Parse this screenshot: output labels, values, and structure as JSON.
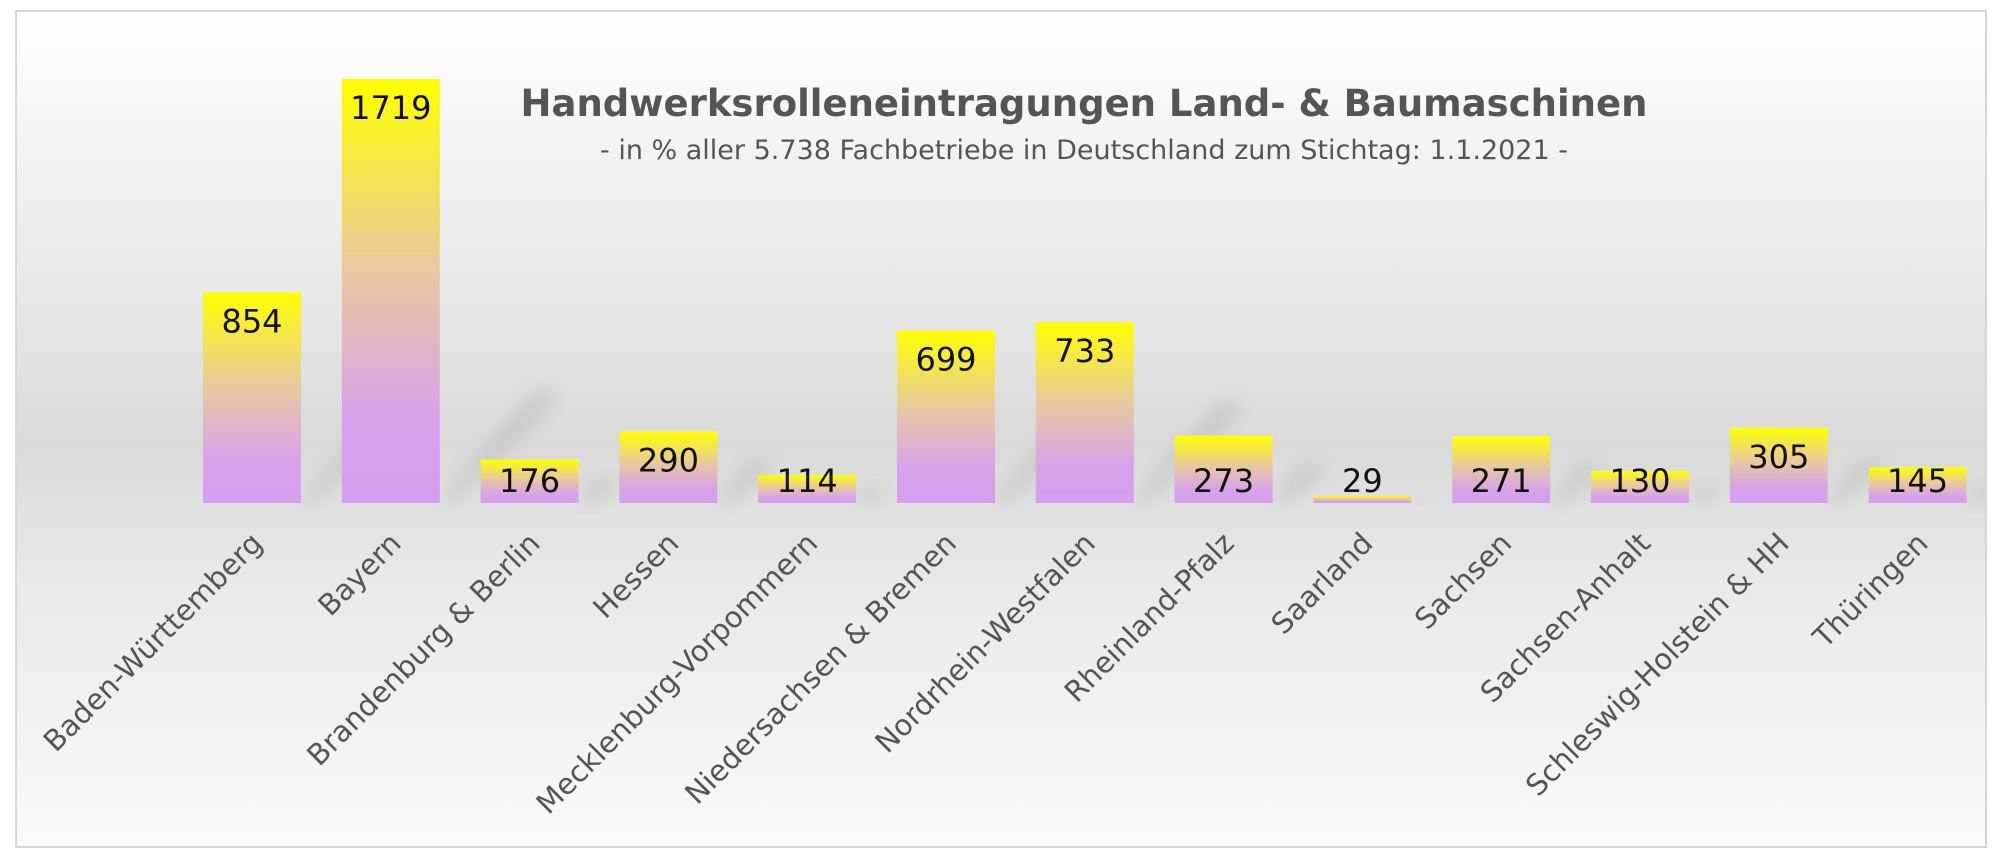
{
  "chart_data": {
    "type": "bar",
    "title": "Handwerksrolleneintragungen Land- & Baumaschinen",
    "subtitle": "- in % aller 5.738 Fachbetriebe in Deutschland zum Stichtag: 1.1.2021 -",
    "categories": [
      "Baden-Württemberg",
      "Bayern",
      "Brandenburg & Berlin",
      "Hessen",
      "Mecklenburg-Vorpommern",
      "Niedersachsen & Bremen",
      "Nordrhein-Westfalen",
      "Rheinland-Pfalz",
      "Saarland",
      "Sachsen",
      "Sachsen-Anhalt",
      "Schleswig-Holstein & HH",
      "Thüringen"
    ],
    "values": [
      854,
      1719,
      176,
      290,
      114,
      699,
      733,
      273,
      29,
      271,
      130,
      305,
      145
    ],
    "xlabel": "",
    "ylabel": "",
    "ylim": [
      0,
      1719
    ],
    "grid": false,
    "legend": "none",
    "colors": {
      "bar_top": "#ffff00",
      "bar_mid": "#e6bfa0",
      "bar_bottom": "#d8a0ee",
      "text": "#555555",
      "value_text": "#111111"
    }
  }
}
